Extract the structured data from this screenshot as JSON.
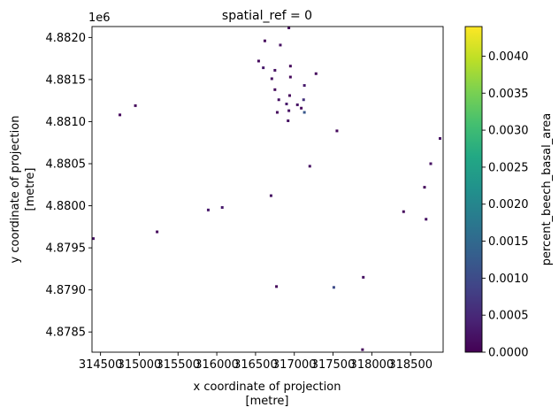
{
  "chart_data": {
    "type": "heatmap",
    "title": "spatial_ref = 0",
    "xlabel": "x coordinate of projection",
    "xlabel_unit": "[metre]",
    "ylabel": "y coordinate of projection",
    "ylabel_unit": "[metre]",
    "y_offset_label": "1e6",
    "xlim": [
      314390,
      318920
    ],
    "ylim": [
      4.87826,
      4.88213
    ],
    "x_ticks": [
      314500,
      315000,
      315500,
      316000,
      316500,
      317000,
      317500,
      318000,
      318500
    ],
    "x_tick_labels": [
      "314500",
      "315000",
      "315500",
      "316000",
      "316500",
      "317000",
      "317500",
      "318000",
      "318500"
    ],
    "y_ticks": [
      4.8785,
      4.879,
      4.8795,
      4.88,
      4.8805,
      4.881,
      4.8815,
      4.882
    ],
    "y_tick_labels": [
      "4.8785",
      "4.8790",
      "4.8795",
      "4.8800",
      "4.8805",
      "4.8810",
      "4.8815",
      "4.8820"
    ],
    "colorbar": {
      "label": "percent_beech_basal_area",
      "colormap": "viridis",
      "range": [
        0,
        0.0044
      ],
      "ticks": [
        0,
        0.0005,
        0.001,
        0.0015,
        0.002,
        0.0025,
        0.003,
        0.0035,
        0.004
      ],
      "tick_labels": [
        "0.0000",
        "0.0005",
        "0.0010",
        "0.0015",
        "0.0020",
        "0.0025",
        "0.0030",
        "0.0035",
        "0.0040"
      ]
    },
    "grid": false,
    "points": [
      {
        "x": 316620,
        "y": 4.88196,
        "v": 0.0001
      },
      {
        "x": 316930,
        "y": 4.88212,
        "v": 0.0001
      },
      {
        "x": 316820,
        "y": 4.88191,
        "v": 0.0002
      },
      {
        "x": 316540,
        "y": 4.88172,
        "v": 0.0001
      },
      {
        "x": 316600,
        "y": 4.88164,
        "v": 0.0003
      },
      {
        "x": 316750,
        "y": 4.88161,
        "v": 0.0002
      },
      {
        "x": 316950,
        "y": 4.88166,
        "v": 0.0001
      },
      {
        "x": 317280,
        "y": 4.88157,
        "v": 0.0001
      },
      {
        "x": 316710,
        "y": 4.88151,
        "v": 0.0002
      },
      {
        "x": 316950,
        "y": 4.88153,
        "v": 0.0001
      },
      {
        "x": 317130,
        "y": 4.88143,
        "v": 0.0003
      },
      {
        "x": 316750,
        "y": 4.88138,
        "v": 0.0001
      },
      {
        "x": 316940,
        "y": 4.88131,
        "v": 0.0001
      },
      {
        "x": 316800,
        "y": 4.88126,
        "v": 0.0002
      },
      {
        "x": 317120,
        "y": 4.88126,
        "v": 0.0006
      },
      {
        "x": 316900,
        "y": 4.88121,
        "v": 0.0003
      },
      {
        "x": 317040,
        "y": 4.8812,
        "v": 0.0002
      },
      {
        "x": 317090,
        "y": 4.88116,
        "v": 0.0001
      },
      {
        "x": 316780,
        "y": 4.88111,
        "v": 0.0001
      },
      {
        "x": 316930,
        "y": 4.88113,
        "v": 0.0002
      },
      {
        "x": 317130,
        "y": 4.88111,
        "v": 0.0012
      },
      {
        "x": 316920,
        "y": 4.88101,
        "v": 0.0002
      },
      {
        "x": 314750,
        "y": 4.88108,
        "v": 0.0001
      },
      {
        "x": 314950,
        "y": 4.88119,
        "v": 0.0001
      },
      {
        "x": 317550,
        "y": 4.88089,
        "v": 0.0001
      },
      {
        "x": 318880,
        "y": 4.8808,
        "v": 0.0002
      },
      {
        "x": 317200,
        "y": 4.88047,
        "v": 0.0002
      },
      {
        "x": 318760,
        "y": 4.8805,
        "v": 0.0002
      },
      {
        "x": 318680,
        "y": 4.88022,
        "v": 0.0001
      },
      {
        "x": 316700,
        "y": 4.88012,
        "v": 0.0002
      },
      {
        "x": 316070,
        "y": 4.87998,
        "v": 0.0003
      },
      {
        "x": 315890,
        "y": 4.87995,
        "v": 0.0003
      },
      {
        "x": 318410,
        "y": 4.87993,
        "v": 0.0001
      },
      {
        "x": 318700,
        "y": 4.87984,
        "v": 0.0002
      },
      {
        "x": 315230,
        "y": 4.87969,
        "v": 0.0001
      },
      {
        "x": 314400,
        "y": 4.87961,
        "v": 0.0002
      },
      {
        "x": 317890,
        "y": 4.87915,
        "v": 0.0002
      },
      {
        "x": 317510,
        "y": 4.87903,
        "v": 0.001
      },
      {
        "x": 316770,
        "y": 4.87904,
        "v": 0.0001
      },
      {
        "x": 317880,
        "y": 4.87829,
        "v": 0.0001
      }
    ]
  }
}
